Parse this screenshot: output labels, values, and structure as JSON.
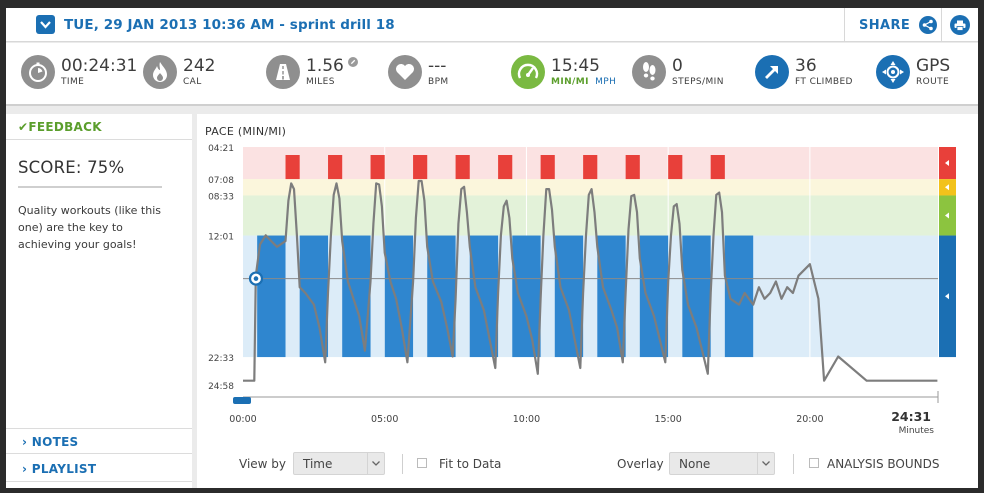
{
  "header": {
    "title": "TUE, 29 JAN 2013 10:36 AM - sprint drill 18",
    "share_label": "SHARE"
  },
  "stats": [
    {
      "icon": "stopwatch-icon",
      "value": "00:24:31",
      "label": "TIME"
    },
    {
      "icon": "flame-icon",
      "value": "242",
      "label": "CAL"
    },
    {
      "icon": "road-icon",
      "value": "1.56",
      "label": "MILES"
    },
    {
      "icon": "heart-icon",
      "value": "---",
      "label": "BPM"
    },
    {
      "icon": "speedometer-icon",
      "value": "15:45",
      "label": "MIN/MI",
      "label2": "MPH"
    },
    {
      "icon": "footprints-icon",
      "value": "0",
      "label": "STEPS/MIN"
    },
    {
      "icon": "climb-arrow-icon",
      "value": "36",
      "label": "FT CLIMBED"
    },
    {
      "icon": "gps-icon",
      "value": "GPS",
      "label": "ROUTE"
    }
  ],
  "feedback": {
    "heading": "FEEDBACK",
    "score": "SCORE: 75%",
    "message": "Quality workouts (like this one) are the key to achieving your goals!"
  },
  "sections": {
    "notes": "NOTES",
    "playlist": "PLAYLIST"
  },
  "controls": {
    "view_by_label": "View by",
    "view_by_value": "Time",
    "fit_to_data_label": "Fit to Data",
    "overlay_label": "Overlay",
    "overlay_value": "None",
    "analysis_bounds_label": "ANALYSIS BOUNDS"
  },
  "colors": {
    "accent": "#1b6fb3",
    "green": "#7ab942",
    "red_zone": "#e8403a",
    "yellow_zone": "#f2c21b"
  },
  "chart_data": {
    "type": "line",
    "title": "PACE (MIN/MI)",
    "ylabel": "PACE (MIN/MI)",
    "xlabel": "Minutes",
    "x_tick_labels": [
      "00:00",
      "05:00",
      "10:00",
      "15:00",
      "20:00"
    ],
    "x_end_label": "24:31",
    "y_tick_labels": [
      "04:21",
      "07:08",
      "08:33",
      "12:01",
      "22:33",
      "24:58"
    ],
    "ylim_min_per_mi": [
      4.35,
      24.97
    ],
    "xlim_min": [
      0,
      24.52
    ],
    "zones": [
      {
        "name": "red",
        "from": 4.35,
        "to": 7.13
      },
      {
        "name": "yellow",
        "from": 7.13,
        "to": 8.55
      },
      {
        "name": "green",
        "from": 8.55,
        "to": 12.02
      },
      {
        "name": "blue",
        "from": 12.02,
        "to": 22.55
      }
    ],
    "sprint_intervals_min": [
      [
        1.5,
        2.0
      ],
      [
        3.0,
        3.5
      ],
      [
        4.5,
        5.0
      ],
      [
        6.0,
        6.5
      ],
      [
        7.5,
        8.0
      ],
      [
        9.0,
        9.5
      ],
      [
        10.5,
        11.0
      ],
      [
        12.0,
        12.5
      ],
      [
        13.5,
        14.0
      ],
      [
        15.0,
        15.5
      ],
      [
        16.5,
        17.0
      ]
    ],
    "recovery_intervals_min": [
      [
        0.5,
        1.5
      ],
      [
        2.0,
        3.0
      ],
      [
        3.5,
        4.5
      ],
      [
        5.0,
        6.0
      ],
      [
        6.5,
        7.5
      ],
      [
        8.0,
        9.0
      ],
      [
        9.5,
        10.5
      ],
      [
        11.0,
        12.0
      ],
      [
        12.5,
        13.5
      ],
      [
        14.0,
        15.0
      ],
      [
        15.5,
        16.5
      ],
      [
        17.0,
        18.0
      ]
    ],
    "average_pace_min_per_mi": 15.75,
    "series": [
      {
        "x": [
          0,
          0.4,
          0.45,
          0.6,
          0.8,
          1.0,
          1.2,
          1.5,
          1.6,
          1.7,
          1.8,
          1.9,
          2.0,
          2.2,
          2.5,
          2.7,
          2.9,
          3.0,
          3.1,
          3.2,
          3.3,
          3.4,
          3.5,
          3.7,
          3.9,
          4.1,
          4.3,
          4.5,
          4.6,
          4.7,
          4.8,
          4.9,
          5.0,
          5.2,
          5.4,
          5.6,
          5.8,
          6.0,
          6.1,
          6.2,
          6.3,
          6.4,
          6.5,
          6.7,
          7.0,
          7.2,
          7.4,
          7.5,
          7.6,
          7.7,
          7.8,
          7.9,
          8.0,
          8.2,
          8.5,
          8.7,
          8.9,
          9.0,
          9.1,
          9.2,
          9.3,
          9.4,
          9.5,
          9.7,
          10.0,
          10.2,
          10.4,
          10.5,
          10.6,
          10.7,
          10.8,
          10.9,
          11.0,
          11.2,
          11.5,
          11.7,
          11.9,
          12.0,
          12.1,
          12.2,
          12.3,
          12.4,
          12.5,
          12.7,
          13.0,
          13.2,
          13.4,
          13.5,
          13.6,
          13.7,
          13.8,
          13.9,
          14.0,
          14.2,
          14.5,
          14.7,
          14.9,
          15.0,
          15.1,
          15.2,
          15.3,
          15.4,
          15.5,
          15.7,
          16.0,
          16.2,
          16.4,
          16.5,
          16.6,
          16.7,
          16.8,
          16.9,
          17.0,
          17.2,
          17.5,
          17.7,
          18.0,
          18.2,
          18.4,
          18.6,
          18.8,
          19.0,
          19.2,
          19.4,
          19.6,
          20.0,
          20.3,
          20.5,
          21.0,
          22.0,
          23.0,
          24.5
        ],
        "y": [
          24.6,
          24.6,
          15.5,
          12.8,
          12.0,
          12.5,
          13.0,
          12.5,
          9.0,
          7.5,
          8.0,
          12.0,
          16.5,
          17.0,
          18.0,
          20.0,
          23.0,
          17.0,
          12.0,
          8.5,
          7.5,
          8.8,
          12.5,
          16.0,
          17.5,
          19.0,
          22.0,
          16.0,
          11.0,
          7.5,
          7.6,
          9.5,
          13.5,
          16.0,
          17.5,
          20.0,
          23.0,
          16.0,
          10.5,
          7.3,
          7.3,
          9.0,
          13.0,
          16.0,
          17.8,
          20.0,
          22.5,
          17.5,
          11.0,
          8.0,
          7.8,
          10.0,
          13.0,
          16.5,
          18.5,
          21.0,
          23.5,
          17.0,
          12.0,
          9.5,
          9.0,
          10.5,
          14.0,
          17.0,
          19.0,
          21.0,
          24.0,
          17.5,
          12.0,
          8.0,
          8.0,
          9.8,
          13.0,
          16.5,
          18.5,
          21.0,
          23.5,
          17.0,
          12.0,
          8.5,
          8.0,
          10.0,
          13.0,
          16.5,
          18.5,
          20.0,
          23.0,
          17.0,
          11.5,
          8.6,
          8.5,
          10.0,
          14.0,
          17.0,
          19.0,
          21.0,
          23.0,
          16.0,
          12.0,
          9.5,
          9.3,
          11.0,
          15.0,
          18.0,
          20.0,
          22.0,
          24.0,
          17.0,
          12.0,
          8.5,
          8.3,
          10.0,
          15.5,
          17.5,
          18.0,
          17.0,
          18.0,
          16.5,
          17.5,
          17.0,
          16.0,
          17.5,
          16.5,
          17.0,
          15.5,
          14.5,
          17.5,
          24.6,
          22.5,
          24.6,
          24.6,
          24.6
        ]
      }
    ]
  }
}
